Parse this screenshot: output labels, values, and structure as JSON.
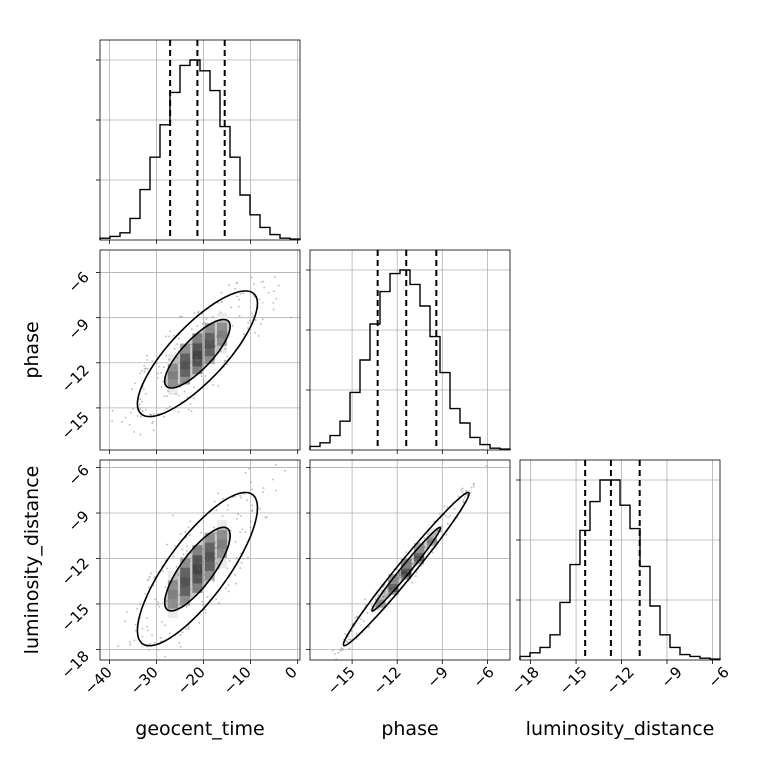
{
  "chart_data": {
    "type": "corner",
    "parameters": [
      "geocent_time",
      "phase",
      "luminosity_distance"
    ],
    "axis_labels": {
      "x": [
        "geocent_time",
        "phase",
        "luminosity_distance"
      ],
      "y": [
        "",
        "phase",
        "luminosity_distance"
      ]
    },
    "ranges": {
      "geocent_time": [
        -42,
        0.5
      ],
      "phase": [
        -17.8,
        -4.5
      ],
      "luminosity_distance": [
        -18.7,
        -5.5
      ]
    },
    "ticks": {
      "geocent_time": [
        -40,
        -30,
        -20,
        -10,
        0
      ],
      "phase": [
        -15,
        -12,
        -9,
        -6
      ],
      "luminosity_distance_x": [
        -18,
        -15,
        -12,
        -9,
        -6
      ],
      "luminosity_distance_y": [
        -18,
        -15,
        -12,
        -9,
        -6
      ]
    },
    "tick_labels": {
      "geocent_time": [
        "−40",
        "−30",
        "−20",
        "−10",
        "0"
      ],
      "phase": [
        "−15",
        "−12",
        "−9",
        "−6"
      ],
      "luminosity_distance_x": [
        "−18",
        "−15",
        "−12",
        "−9",
        "−6"
      ],
      "luminosity_distance_y": [
        "−18",
        "−15",
        "−12",
        "−9",
        "−6"
      ]
    },
    "histograms": [
      {
        "parameter": "geocent_time",
        "edges": [
          -42.0,
          -39.875,
          -37.75,
          -35.625,
          -33.5,
          -31.375,
          -29.25,
          -27.125,
          -25.0,
          -22.875,
          -20.75,
          -18.625,
          -16.5,
          -14.375,
          -12.25,
          -10.125,
          -8.0,
          -5.875,
          -3.75,
          -1.625,
          0.5
        ],
        "counts": [
          0.01,
          0.02,
          0.04,
          0.12,
          0.28,
          0.46,
          0.64,
          0.82,
          0.97,
          1.0,
          0.94,
          0.83,
          0.63,
          0.46,
          0.25,
          0.14,
          0.07,
          0.03,
          0.01,
          0.005
        ],
        "quantiles": [
          -27.1,
          -21.3,
          -15.5
        ]
      },
      {
        "parameter": "phase",
        "edges": [
          -17.8,
          -17.135,
          -16.47,
          -15.805,
          -15.14,
          -14.475,
          -13.81,
          -13.145,
          -12.48,
          -11.815,
          -11.15,
          -10.485,
          -9.82,
          -9.155,
          -8.49,
          -7.825,
          -7.16,
          -6.495,
          -5.83,
          -5.165,
          -4.5
        ],
        "counts": [
          0.02,
          0.04,
          0.08,
          0.16,
          0.32,
          0.5,
          0.7,
          0.88,
          0.98,
          1.0,
          0.92,
          0.8,
          0.63,
          0.43,
          0.23,
          0.15,
          0.07,
          0.03,
          0.01,
          0.005
        ],
        "quantiles": [
          -13.3,
          -11.4,
          -9.4
        ]
      },
      {
        "parameter": "luminosity_distance",
        "edges": [
          -18.7,
          -18.04,
          -17.38,
          -16.72,
          -16.06,
          -15.4,
          -14.74,
          -14.08,
          -13.42,
          -12.76,
          -12.1,
          -11.44,
          -10.78,
          -10.12,
          -9.46,
          -8.8,
          -8.14,
          -7.48,
          -6.82,
          -6.16,
          -5.5
        ],
        "counts": [
          0.02,
          0.04,
          0.07,
          0.14,
          0.32,
          0.53,
          0.72,
          0.88,
          1.0,
          1.0,
          0.86,
          0.73,
          0.52,
          0.3,
          0.14,
          0.07,
          0.03,
          0.02,
          0.01,
          0.005
        ],
        "quantiles": [
          -14.4,
          -12.7,
          -10.8
        ]
      }
    ],
    "joint_2d": [
      {
        "x": "geocent_time",
        "y": "phase",
        "mean": [
          -21.3,
          -11.4
        ],
        "sd": [
          5.8,
          1.9
        ],
        "rho": 0.8
      },
      {
        "x": "geocent_time",
        "y": "luminosity_distance",
        "mean": [
          -21.3,
          -12.7
        ],
        "sd": [
          5.8,
          2.3
        ],
        "rho": 0.8
      },
      {
        "x": "phase",
        "y": "luminosity_distance",
        "mean": [
          -11.4,
          -12.7
        ],
        "sd": [
          1.9,
          2.3
        ],
        "rho": 0.985
      }
    ],
    "grid": true,
    "histogram_color": "#000000",
    "contour_color": "#000000",
    "point_color": "#808080"
  }
}
